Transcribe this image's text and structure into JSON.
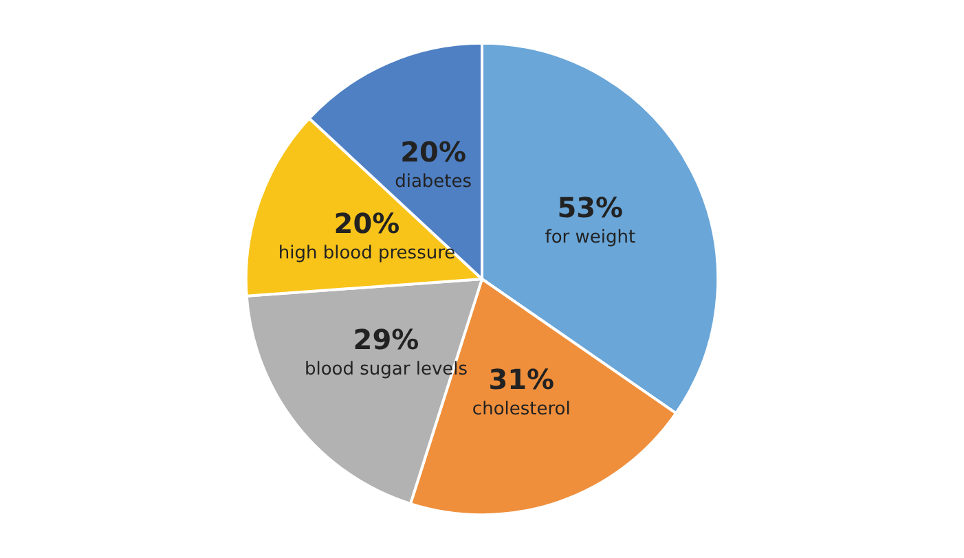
{
  "chart_data": {
    "type": "pie",
    "categories": [
      "for weight",
      "cholesterol",
      "blood sugar levels",
      "high blood pressure",
      "diabetes"
    ],
    "values": [
      53,
      31,
      29,
      20,
      20
    ],
    "value_labels": [
      "53%",
      "31%",
      "29%",
      "20%",
      "20%"
    ],
    "colors": [
      "#6aa6d8",
      "#ef8f3c",
      "#b2b2b2",
      "#f8c41a",
      "#4f80c4"
    ],
    "legend": false
  }
}
